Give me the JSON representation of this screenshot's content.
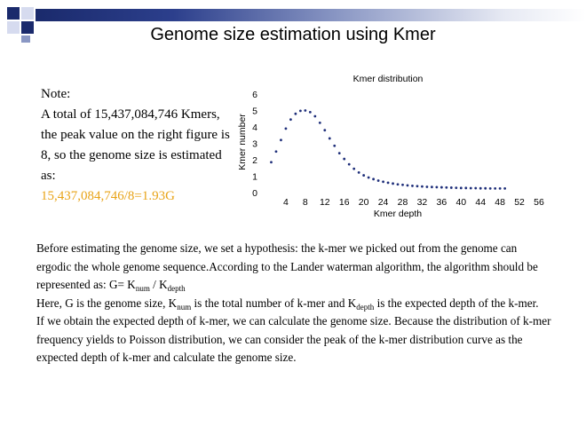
{
  "slide": {
    "title": "Genome size estimation using Kmer"
  },
  "note": {
    "heading": "Note:",
    "text": "A total of 15,437,084,746 Kmers, the peak value on the right figure is 8, so the genome size is estimated as:",
    "formula": "15,437,084,746/8=1.93G"
  },
  "chart_data": {
    "type": "scatter",
    "title": "Kmer distribution",
    "xlabel": "Kmer depth",
    "ylabel": "Kmer number",
    "xlim": [
      0,
      56
    ],
    "ylim": [
      0,
      6
    ],
    "x_ticks": [
      "4",
      "8",
      "12",
      "16",
      "20",
      "24",
      "28",
      "32",
      "36",
      "40",
      "44",
      "48",
      "52",
      "56"
    ],
    "y_ticks": [
      "0",
      "1",
      "2",
      "3",
      "4",
      "5",
      "6"
    ],
    "series": [
      {
        "name": "Kmer distribution",
        "x": [
          1,
          2,
          3,
          4,
          5,
          6,
          7,
          8,
          9,
          10,
          11,
          12,
          13,
          14,
          15,
          16,
          17,
          18,
          19,
          20,
          21,
          22,
          23,
          24,
          25,
          26,
          27,
          28,
          29,
          30,
          31,
          32,
          33,
          34,
          35,
          36,
          37,
          38,
          39,
          40,
          41,
          42,
          43,
          44,
          45,
          46,
          47,
          48,
          49
        ],
        "y": [
          1.85,
          2.5,
          3.2,
          3.9,
          4.45,
          4.8,
          4.98,
          5.0,
          4.9,
          4.65,
          4.25,
          3.8,
          3.3,
          2.85,
          2.4,
          2.05,
          1.72,
          1.45,
          1.22,
          1.05,
          0.92,
          0.82,
          0.73,
          0.66,
          0.6,
          0.55,
          0.5,
          0.47,
          0.44,
          0.41,
          0.39,
          0.37,
          0.35,
          0.34,
          0.33,
          0.32,
          0.31,
          0.3,
          0.29,
          0.28,
          0.28,
          0.27,
          0.27,
          0.26,
          0.26,
          0.25,
          0.25,
          0.25,
          0.25
        ]
      }
    ]
  },
  "body": {
    "p1": "Before estimating the genome size, we set a hypothesis: the k-mer we picked out from the genome can ergodic the whole genome sequence.According to the Lander waterman algorithm, the algorithm should be represented as: G= K",
    "num_sub": "num",
    "p1_mid": " / K",
    "depth_sub": "depth",
    "p2_a": "Here, G is the genome size, K",
    "p2_b": " is the total number of k-mer and K",
    "p2_c": " is the expected depth of the k-mer.",
    "p3": "If we obtain the expected depth of k-mer, we can calculate the genome size. Because the distribution of k-mer frequency yields to Poisson distribution, we can consider the peak of the k-mer distribution curve as the expected depth of k-mer and calculate the genome size."
  },
  "colors": {
    "accent": "#1a2a6c",
    "highlight": "#e8a317",
    "dots": "#1f2f7a"
  }
}
